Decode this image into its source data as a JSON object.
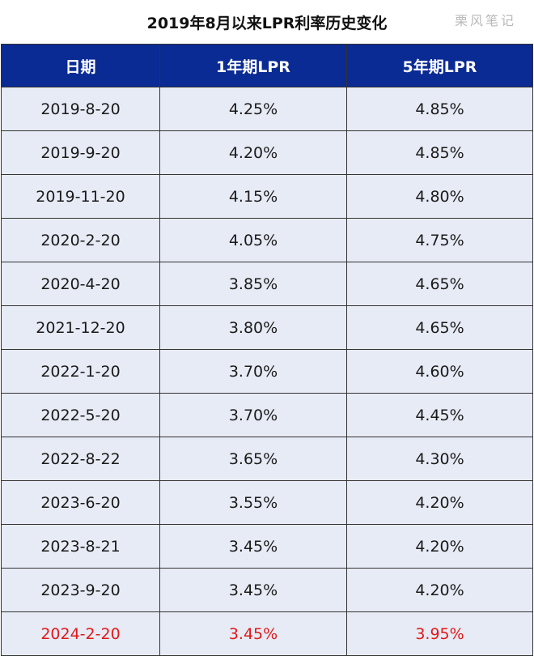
{
  "title": "2019年8月以来LPR利率历史变化",
  "watermark": "栗风笔记",
  "colors": {
    "header_bg": "#0a2a94",
    "row_bg": "#e7ebf5",
    "highlight_text": "#e01818"
  },
  "table": {
    "headers": [
      "日期",
      "1年期LPR",
      "5年期LPR"
    ],
    "rows": [
      {
        "date": "2019-8-20",
        "lpr1y": "4.25%",
        "lpr5y": "4.85%"
      },
      {
        "date": "2019-9-20",
        "lpr1y": "4.20%",
        "lpr5y": "4.85%"
      },
      {
        "date": "2019-11-20",
        "lpr1y": "4.15%",
        "lpr5y": "4.80%"
      },
      {
        "date": "2020-2-20",
        "lpr1y": "4.05%",
        "lpr5y": "4.75%"
      },
      {
        "date": "2020-4-20",
        "lpr1y": "3.85%",
        "lpr5y": "4.65%"
      },
      {
        "date": "2021-12-20",
        "lpr1y": "3.80%",
        "lpr5y": "4.65%"
      },
      {
        "date": "2022-1-20",
        "lpr1y": "3.70%",
        "lpr5y": "4.60%"
      },
      {
        "date": "2022-5-20",
        "lpr1y": "3.70%",
        "lpr5y": "4.45%"
      },
      {
        "date": "2022-8-22",
        "lpr1y": "3.65%",
        "lpr5y": "4.30%"
      },
      {
        "date": "2023-6-20",
        "lpr1y": "3.55%",
        "lpr5y": "4.20%"
      },
      {
        "date": "2023-8-21",
        "lpr1y": "3.45%",
        "lpr5y": "4.20%"
      },
      {
        "date": "2023-9-20",
        "lpr1y": "3.45%",
        "lpr5y": "4.20%"
      },
      {
        "date": "2024-2-20",
        "lpr1y": "3.45%",
        "lpr5y": "3.95%",
        "highlight": true
      }
    ]
  }
}
